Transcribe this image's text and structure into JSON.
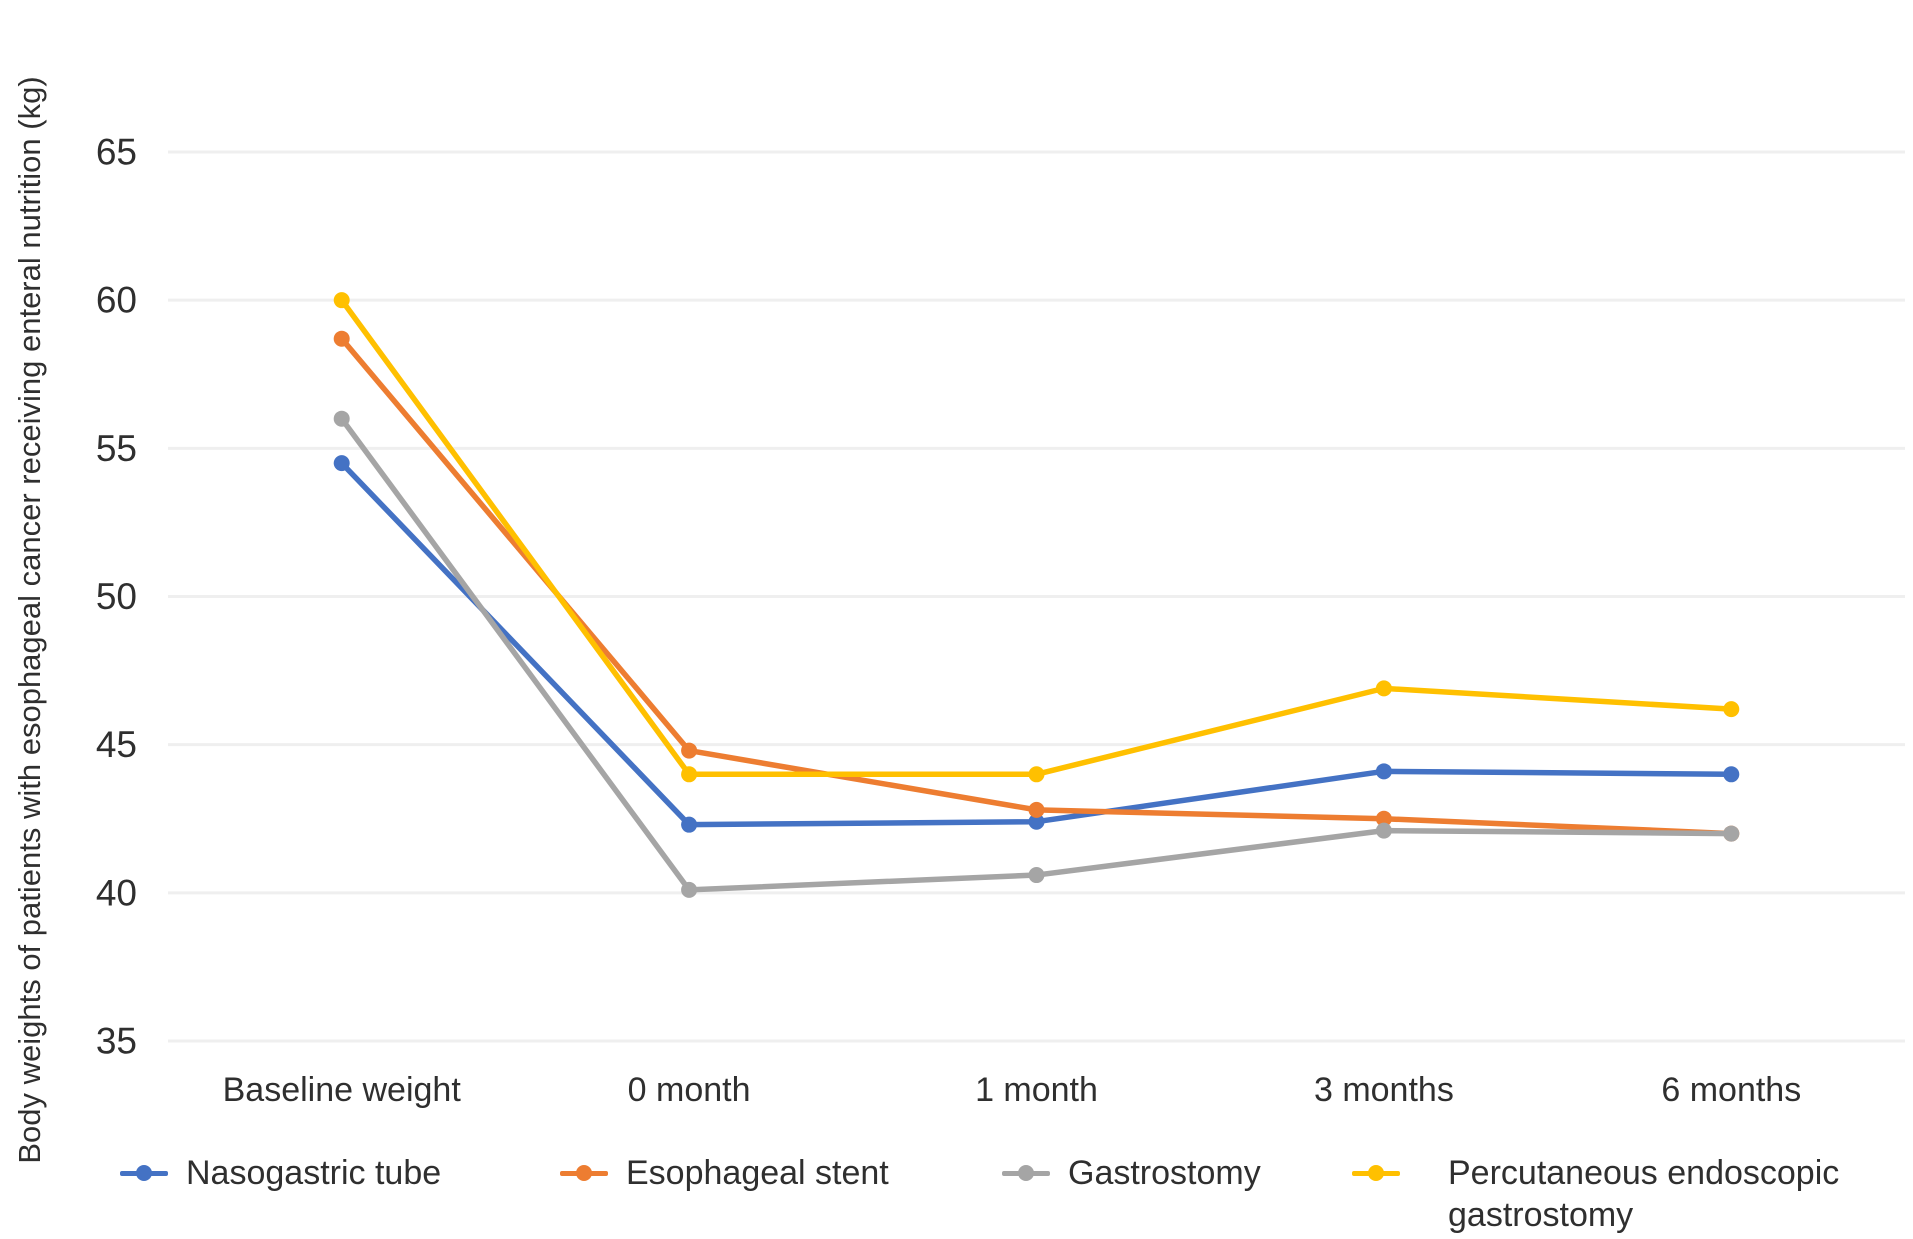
{
  "chart_data": {
    "type": "line",
    "title": "",
    "xlabel": "",
    "ylabel": "Body weights of patients with esophageal cancer receiving enteral nutrition (kg)",
    "categories": [
      "Baseline weight",
      "0 month",
      "1 month",
      "3 months",
      "6 months"
    ],
    "series": [
      {
        "name": "Nasogastric tube",
        "color": "#4472C4",
        "values": [
          54.5,
          42.3,
          42.4,
          44.1,
          44.0
        ]
      },
      {
        "name": "Esophageal stent",
        "color": "#ED7D31",
        "values": [
          58.7,
          44.8,
          42.8,
          42.5,
          42.0
        ]
      },
      {
        "name": "Gastrostomy",
        "color": "#A5A5A5",
        "values": [
          56.0,
          40.1,
          40.6,
          42.1,
          42.0
        ]
      },
      {
        "name": "Percutaneous endoscopic gastrostomy",
        "color": "#FFC000",
        "values": [
          60.0,
          44.0,
          44.0,
          46.9,
          46.2
        ]
      }
    ],
    "y_ticks": [
      35,
      40,
      45,
      50,
      55,
      60,
      65
    ],
    "ylim": [
      35,
      65
    ],
    "grid": true,
    "legend_position": "bottom"
  },
  "colors": {
    "text": "#2f2f2f",
    "gridline": "#efefef",
    "background": "#ffffff"
  }
}
